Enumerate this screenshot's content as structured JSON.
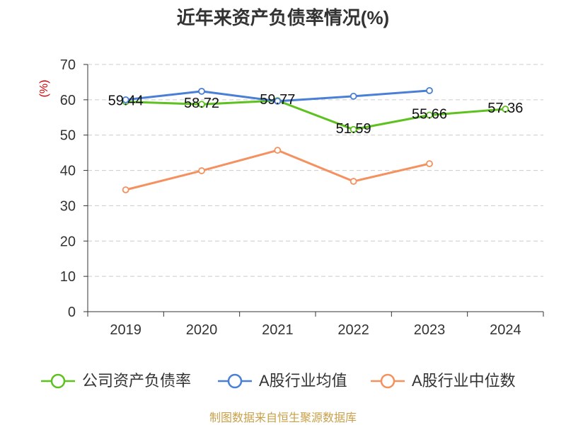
{
  "chart_data": {
    "type": "line",
    "title": "近年来资产负债率情况(%)",
    "xlabel": "",
    "ylabel": "(%)",
    "categories": [
      "2019",
      "2020",
      "2021",
      "2022",
      "2023",
      "2024"
    ],
    "ylim": [
      0,
      70
    ],
    "yticks": [
      0,
      10,
      20,
      30,
      40,
      50,
      60,
      70
    ],
    "grid": true,
    "legend": "bottom",
    "series": [
      {
        "name": "公司资产负债率",
        "color": "#5ec11f",
        "values": [
          59.44,
          58.72,
          59.77,
          51.59,
          55.66,
          57.36
        ],
        "data_labels": true
      },
      {
        "name": "A股行业均值",
        "color": "#4a7fd6",
        "values": [
          60.0,
          62.4,
          59.6,
          61.0,
          62.6,
          null
        ],
        "data_labels": false
      },
      {
        "name": "A股行业中位数",
        "color": "#f4915e",
        "values": [
          34.5,
          39.9,
          45.7,
          36.9,
          41.9,
          null
        ],
        "data_labels": false
      }
    ]
  },
  "footer": "制图数据来自恒生聚源数据库",
  "colors": {
    "title": "#333333",
    "ylabel": "#cc0000",
    "footer": "#c9a04a",
    "grid": "#cccccc",
    "axis": "#333333"
  }
}
